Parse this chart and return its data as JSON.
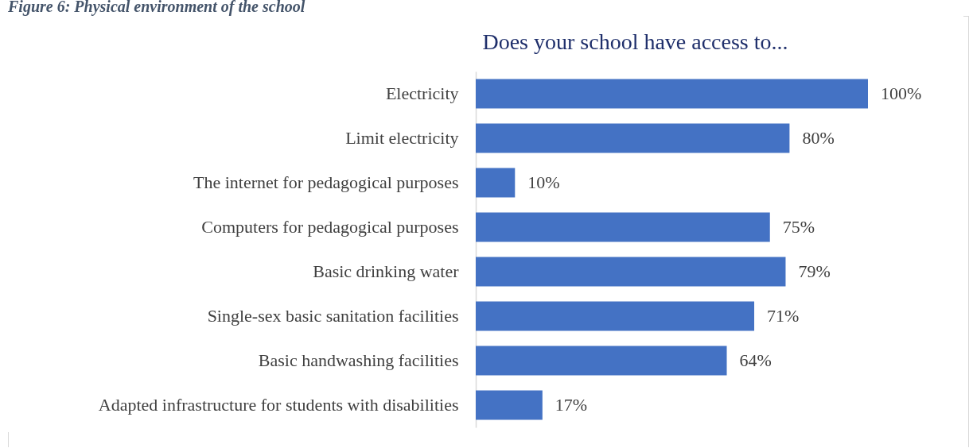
{
  "chart_data": {
    "type": "bar",
    "orientation": "horizontal",
    "title": "Does your school have access to...",
    "annotations": [
      "Figure 6: Physical environment of the school"
    ],
    "categories": [
      "Electricity",
      "Limit electricity",
      "The internet for pedagogical purposes",
      "Computers for pedagogical purposes",
      "Basic drinking water",
      "Single-sex basic sanitation facilities",
      "Basic handwashing facilities",
      "Adapted infrastructure for students with disabilities"
    ],
    "values": [
      100,
      80,
      10,
      75,
      79,
      71,
      64,
      17
    ],
    "value_labels": [
      "100%",
      "80%",
      "10%",
      "75%",
      "79%",
      "71%",
      "64%",
      "17%"
    ],
    "color": "#4472c4"
  }
}
